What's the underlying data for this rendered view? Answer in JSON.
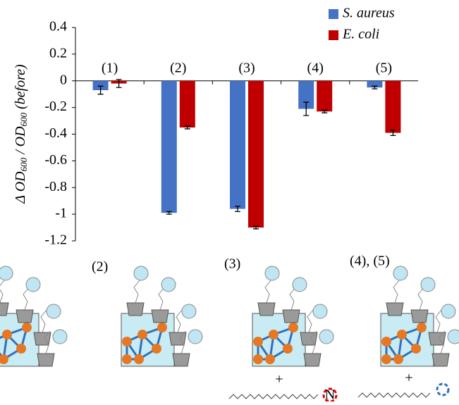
{
  "chart_data": {
    "type": "bar",
    "ylabel": [
      "Δ OD",
      "600",
      " / OD",
      "600",
      " (before)"
    ],
    "categories": [
      "(1)",
      "(2)",
      "(3)",
      "(4)",
      "(5)"
    ],
    "series": [
      {
        "name": "S. aureus",
        "color": "#4472c4",
        "values": [
          -0.07,
          -0.99,
          -0.96,
          -0.21,
          -0.05
        ],
        "errors": [
          0.03,
          0.01,
          0.02,
          0.05,
          0.01
        ]
      },
      {
        "name": "E. coli",
        "color": "#c00000",
        "values": [
          -0.02,
          -0.35,
          -1.1,
          -0.23,
          -0.39
        ],
        "errors": [
          0.03,
          0.01,
          0.01,
          0.01,
          0.02
        ]
      }
    ],
    "ylim": [
      -1.2,
      0.4
    ],
    "yticks": [
      0.4,
      0.2,
      0,
      -0.2,
      -0.4,
      -0.6,
      -0.8,
      -1,
      -1.2
    ],
    "legend": "top-right"
  },
  "illustrations": {
    "labels": [
      "(2)",
      "(3)",
      "(4), (5)"
    ],
    "plus": "+",
    "cation": "N"
  }
}
